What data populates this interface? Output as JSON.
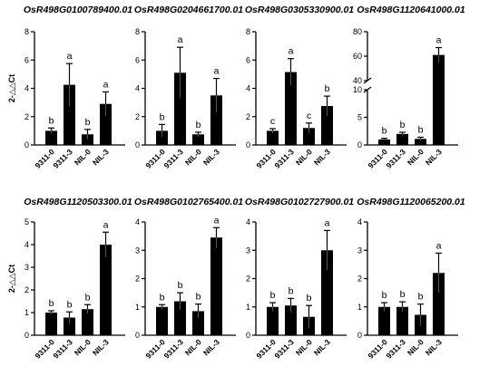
{
  "chart_data": [
    {
      "type": "bar",
      "title": "OsR498G0100789400.01",
      "ylabel": "2-△△Ct",
      "categories": [
        "9311-0",
        "9311-3",
        "NIL-0",
        "NIL-3"
      ],
      "values": [
        1.0,
        4.25,
        0.75,
        2.9
      ],
      "errors": [
        0.2,
        1.5,
        0.35,
        0.85
      ],
      "significance": [
        "b",
        "a",
        "b",
        "a"
      ],
      "ylim": [
        0,
        8
      ],
      "yticks": [
        0,
        2,
        4,
        6,
        8
      ]
    },
    {
      "type": "bar",
      "title": "OsR498G0204661700.01",
      "ylabel": "",
      "categories": [
        "9311-0",
        "9311-3",
        "NIL-0",
        "NIL-3"
      ],
      "values": [
        1.0,
        5.1,
        0.75,
        3.5
      ],
      "errors": [
        0.45,
        1.8,
        0.15,
        1.2
      ],
      "significance": [
        "b",
        "a",
        "b",
        "a"
      ],
      "ylim": [
        0,
        8
      ],
      "yticks": [
        0,
        2,
        4,
        6,
        8
      ]
    },
    {
      "type": "bar",
      "title": "OsR498G0305330900.01",
      "ylabel": "",
      "categories": [
        "9311-0",
        "9311-3",
        "NIL-0",
        "NIL-3"
      ],
      "values": [
        1.0,
        5.15,
        1.2,
        2.75
      ],
      "errors": [
        0.15,
        0.95,
        0.35,
        0.7
      ],
      "significance": [
        "c",
        "a",
        "c",
        "b"
      ],
      "ylim": [
        0,
        8
      ],
      "yticks": [
        0,
        2,
        4,
        6,
        8
      ]
    },
    {
      "type": "bar",
      "title": "OsR498G1120641000.01",
      "ylabel": "",
      "categories": [
        "9311-0",
        "9311-3",
        "NIL-0",
        "NIL-3"
      ],
      "values": [
        1.0,
        2.0,
        1.1,
        61
      ],
      "errors": [
        0.2,
        0.3,
        0.3,
        6
      ],
      "significance": [
        "b",
        "b",
        "b",
        "a"
      ],
      "broken_axis": {
        "lower": [
          0,
          10
        ],
        "upper": [
          40,
          80
        ]
      },
      "yticks": [
        0,
        5,
        10,
        40,
        60,
        80
      ]
    },
    {
      "type": "bar",
      "title": "OsR498G1120503300.01",
      "ylabel": "2-△△Ct",
      "categories": [
        "9311-0",
        "9311-3",
        "NIL-0",
        "NIL-3"
      ],
      "values": [
        1.0,
        0.78,
        1.15,
        4.0
      ],
      "errors": [
        0.08,
        0.25,
        0.2,
        0.55
      ],
      "significance": [
        "b",
        "b",
        "b",
        "a"
      ],
      "ylim": [
        0,
        5
      ],
      "yticks": [
        0,
        1,
        2,
        3,
        4,
        5
      ]
    },
    {
      "type": "bar",
      "title": "OsR498G0102765400.01",
      "ylabel": "",
      "categories": [
        "9311-0",
        "9311-3",
        "NIL-0",
        "NIL-3"
      ],
      "values": [
        1.0,
        1.2,
        0.85,
        3.45
      ],
      "errors": [
        0.08,
        0.3,
        0.25,
        0.35
      ],
      "significance": [
        "b",
        "b",
        "b",
        "a"
      ],
      "ylim": [
        0,
        4
      ],
      "yticks": [
        0,
        1,
        2,
        3,
        4
      ]
    },
    {
      "type": "bar",
      "title": "OsR498G0102727900.01",
      "ylabel": "",
      "categories": [
        "9311-0",
        "9311-3",
        "NIL-0",
        "NIL-3"
      ],
      "values": [
        1.0,
        1.05,
        0.65,
        3.0
      ],
      "errors": [
        0.15,
        0.25,
        0.4,
        0.7
      ],
      "significance": [
        "b",
        "b",
        "b",
        "a"
      ],
      "ylim": [
        0,
        4
      ],
      "yticks": [
        0,
        1,
        2,
        3,
        4
      ]
    },
    {
      "type": "bar",
      "title": "OsR498G1120065200.01",
      "ylabel": "",
      "categories": [
        "9311-0",
        "9311-3",
        "NIL-0",
        "NIL-3"
      ],
      "values": [
        1.0,
        1.0,
        0.72,
        2.2
      ],
      "errors": [
        0.15,
        0.18,
        0.38,
        0.7
      ],
      "significance": [
        "b",
        "b",
        "b",
        "a"
      ],
      "ylim": [
        0,
        4
      ],
      "yticks": [
        0,
        1,
        2,
        3,
        4
      ]
    }
  ]
}
